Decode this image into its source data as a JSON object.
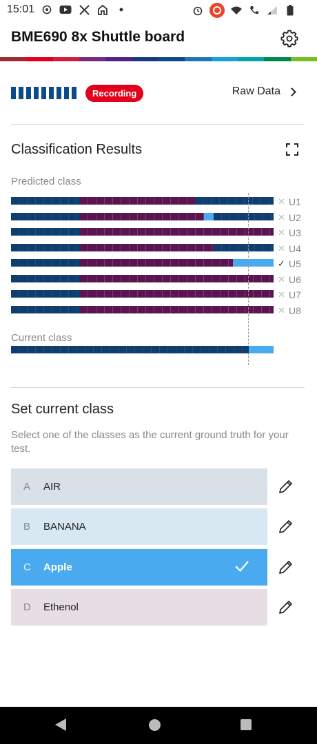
{
  "status_bar": {
    "time": "15:01",
    "left_icons": [
      "location-icon",
      "youtube-icon",
      "x-icon",
      "home-app-icon"
    ],
    "right_icons": [
      "alarm-icon",
      "recording-icon",
      "wifi-icon",
      "call-icon",
      "signal-icon",
      "battery-icon"
    ]
  },
  "header": {
    "title": "BME690 8x Shuttle board",
    "settings_icon": "gear-icon",
    "stripe_colors": [
      "#9e2a2f",
      "#e2001a",
      "#d01f3c",
      "#7a2a7a",
      "#50237f",
      "#18387a",
      "#0b4a8b",
      "#1d75b8",
      "#18a0d8",
      "#00a6a6",
      "#00884a",
      "#78be20"
    ]
  },
  "recording": {
    "level_bars": 9,
    "badge": "Recording",
    "raw_data_label": "Raw Data"
  },
  "classification": {
    "title": "Classification Results",
    "predicted_label": "Predicted class",
    "current_label": "Current class",
    "colors": {
      "navy": "#0f3d6e",
      "purple": "#5a1450",
      "lightblue": "#4aaaf0"
    },
    "rows": [
      {
        "label": "U1",
        "selected": false,
        "segments": [
          [
            "navy",
            0.263
          ],
          [
            "purple",
            0.437
          ],
          [
            "navy",
            0.3
          ]
        ]
      },
      {
        "label": "U2",
        "selected": false,
        "segments": [
          [
            "navy",
            0.263
          ],
          [
            "purple",
            0.472
          ],
          [
            "lightblue",
            0.037
          ],
          [
            "navy",
            0.228
          ]
        ]
      },
      {
        "label": "U3",
        "selected": false,
        "segments": [
          [
            "navy",
            0.263
          ],
          [
            "purple",
            0.737
          ]
        ]
      },
      {
        "label": "U4",
        "selected": false,
        "segments": [
          [
            "navy",
            0.263
          ],
          [
            "purple",
            0.509
          ],
          [
            "navy",
            0.228
          ]
        ]
      },
      {
        "label": "U5",
        "selected": true,
        "segments": [
          [
            "navy",
            0.263
          ],
          [
            "purple",
            0.583
          ],
          [
            "lightblue",
            0.154
          ]
        ]
      },
      {
        "label": "U6",
        "selected": false,
        "segments": [
          [
            "navy",
            0.263
          ],
          [
            "purple",
            0.737
          ]
        ]
      },
      {
        "label": "U7",
        "selected": false,
        "segments": [
          [
            "navy",
            0.263
          ],
          [
            "purple",
            0.737
          ]
        ]
      },
      {
        "label": "U8",
        "selected": false,
        "segments": [
          [
            "navy",
            0.263
          ],
          [
            "purple",
            0.737
          ]
        ]
      }
    ],
    "current_segments": [
      [
        "navy",
        0.906
      ],
      [
        "lightblue",
        0.094
      ]
    ],
    "marker_fraction": 0.906
  },
  "set_class": {
    "title": "Set current class",
    "description": "Select one of the classes as the current ground truth for your test.",
    "classes": [
      {
        "letter": "A",
        "name": "AIR",
        "bg": "#d8e1e8",
        "active": false
      },
      {
        "letter": "B",
        "name": "BANANA",
        "bg": "#d8e8f3",
        "active": false
      },
      {
        "letter": "C",
        "name": "Apple",
        "bg": "#4aaaf0",
        "active": true
      },
      {
        "letter": "D",
        "name": "Ethenol",
        "bg": "#e7dde4",
        "active": false
      }
    ]
  }
}
